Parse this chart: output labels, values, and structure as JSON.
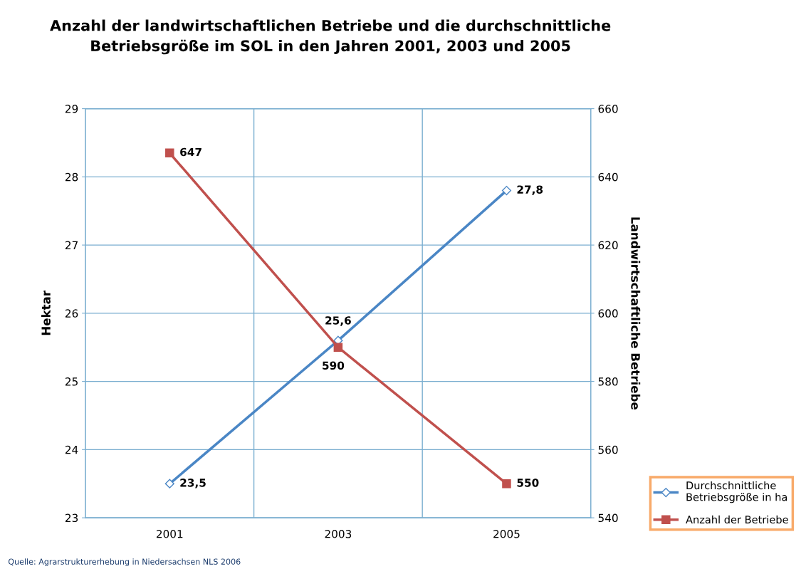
{
  "chart_data": {
    "type": "line",
    "title": "Anzahl der landwirtschaftlichen Betriebe und die durchschnittliche\nBetriebsgröße im SOL in den Jahren 2001, 2003 und 2005",
    "ylabel": "Hektar",
    "y2label": "Landwirtschaftliche Betriebe",
    "categories": [
      "2001",
      "2003",
      "2005"
    ],
    "series": [
      {
        "name": "Durchschnittliche\nBetriebsgröße in ha",
        "color": "#4a86c5",
        "values": [
          23.5,
          25.6,
          27.8
        ],
        "value_labels": [
          "23,5",
          "25,6",
          "27,8"
        ],
        "marker": "diamond"
      },
      {
        "name": "Anzahl der Betriebe",
        "color": "#c0504d",
        "values": [
          647,
          590,
          550
        ],
        "value_labels": [
          "647",
          "590",
          "550"
        ],
        "marker": "square",
        "axis": "y2"
      }
    ],
    "ylim": [
      23,
      29
    ],
    "yticks": [
      23,
      24,
      25,
      26,
      27,
      28,
      29
    ],
    "y2lim": [
      540,
      660
    ],
    "y2ticks": [
      540,
      560,
      580,
      600,
      620,
      640,
      660
    ],
    "grid": true,
    "legend": "bottom right",
    "annotations": [
      "Quelle: Agrarstrukturerhebung in Niedersachsen NLS 2006"
    ]
  }
}
